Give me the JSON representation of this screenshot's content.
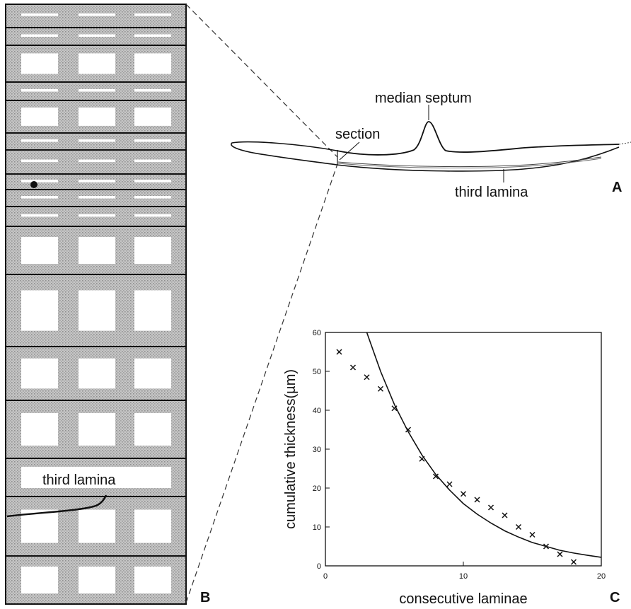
{
  "panel_a": {
    "letter": "A",
    "labels": {
      "median_septum": "median septum",
      "section": "section",
      "third_lamina": "third lamina"
    }
  },
  "panel_b": {
    "letter": "B",
    "label": "third lamina",
    "rows": [
      {
        "hole": "slit"
      },
      {
        "hole": "slit"
      },
      {
        "hole": "rect"
      },
      {
        "hole": "slit"
      },
      {
        "hole": "rect"
      },
      {
        "hole": "slit"
      },
      {
        "hole": "slit"
      },
      {
        "hole": "slit"
      },
      {
        "hole": "slit"
      },
      {
        "hole": "slit"
      },
      {
        "hole": "rect"
      },
      {
        "hole": "rect"
      },
      {
        "hole": "rect"
      },
      {
        "hole": "rect"
      },
      {
        "hole": "label"
      },
      {
        "hole": "rect"
      },
      {
        "hole": "rect"
      }
    ]
  },
  "panel_c": {
    "letter": "C",
    "colors": {
      "fit_line": "#111111",
      "markers": "#111111"
    },
    "chart_data": {
      "type": "scatter",
      "xlabel": "consecutive laminae",
      "ylabel": "cumulative thickness(µm)",
      "xlim": [
        0,
        20
      ],
      "ylim": [
        0,
        60
      ],
      "xticks": [
        0,
        10,
        20
      ],
      "yticks": [
        0,
        10,
        20,
        30,
        40,
        50,
        60
      ],
      "grid": false,
      "marker": "x",
      "points": [
        {
          "x": 1,
          "y": 55
        },
        {
          "x": 2,
          "y": 51
        },
        {
          "x": 3,
          "y": 48.5
        },
        {
          "x": 4,
          "y": 45.5
        },
        {
          "x": 5,
          "y": 40.5
        },
        {
          "x": 6,
          "y": 35
        },
        {
          "x": 7,
          "y": 27.5
        },
        {
          "x": 8,
          "y": 23
        },
        {
          "x": 9,
          "y": 21
        },
        {
          "x": 10,
          "y": 18.5
        },
        {
          "x": 11,
          "y": 17
        },
        {
          "x": 12,
          "y": 15
        },
        {
          "x": 13,
          "y": 13
        },
        {
          "x": 14,
          "y": 10
        },
        {
          "x": 15,
          "y": 8
        },
        {
          "x": 16,
          "y": 5
        },
        {
          "x": 17,
          "y": 3
        },
        {
          "x": 18,
          "y": 1
        }
      ],
      "fit_curve": [
        {
          "x": 3,
          "y": 60
        },
        {
          "x": 4,
          "y": 50
        },
        {
          "x": 5,
          "y": 41.5
        },
        {
          "x": 6,
          "y": 34.5
        },
        {
          "x": 7,
          "y": 28.5
        },
        {
          "x": 8,
          "y": 23.5
        },
        {
          "x": 9,
          "y": 19.5
        },
        {
          "x": 10,
          "y": 16
        },
        {
          "x": 11,
          "y": 13.3
        },
        {
          "x": 12,
          "y": 11
        },
        {
          "x": 13,
          "y": 9
        },
        {
          "x": 14,
          "y": 7.4
        },
        {
          "x": 15,
          "y": 6
        },
        {
          "x": 16,
          "y": 5
        },
        {
          "x": 17,
          "y": 4
        },
        {
          "x": 18,
          "y": 3.3
        },
        {
          "x": 19,
          "y": 2.7
        },
        {
          "x": 20,
          "y": 2.2
        }
      ]
    }
  }
}
